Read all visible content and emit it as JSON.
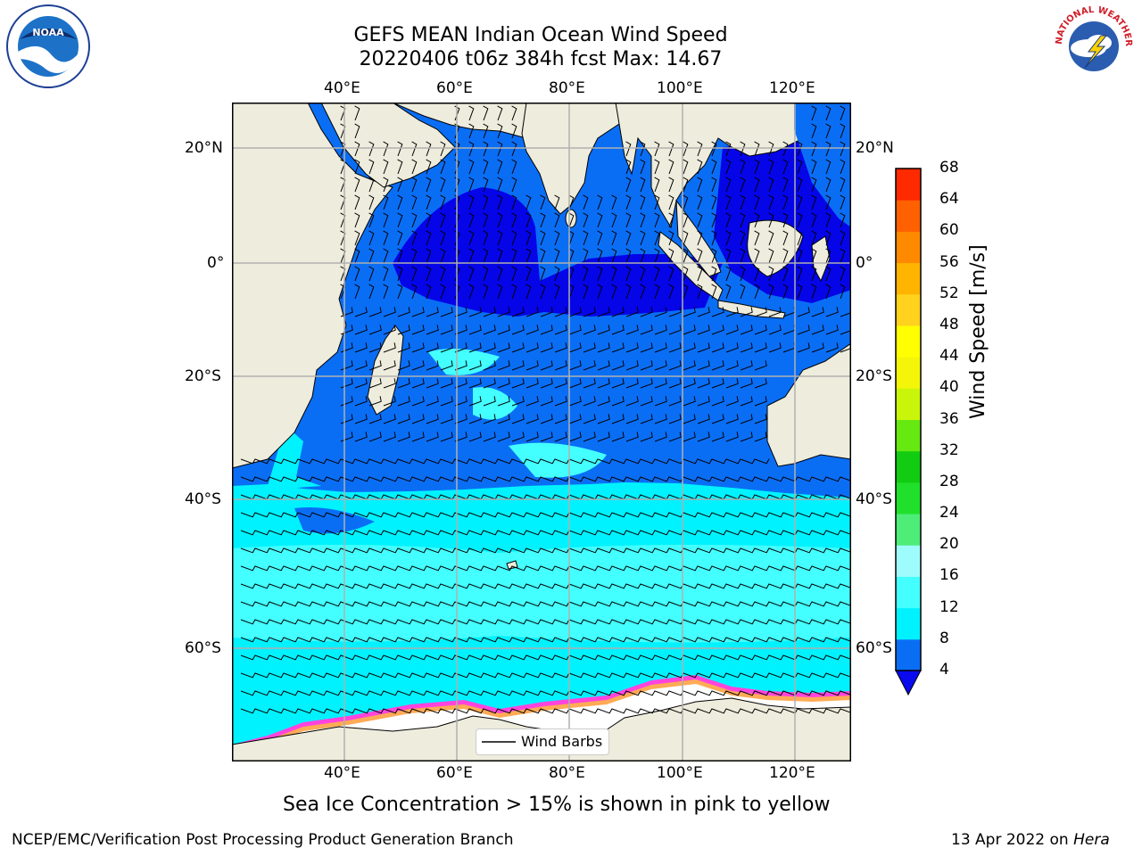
{
  "title": {
    "line1": "GEFS MEAN Indian Ocean Wind Speed",
    "line2": "20220406 t06z 384h fcst   Max: 14.67"
  },
  "map": {
    "lon_labels": [
      "40°E",
      "60°E",
      "80°E",
      "100°E",
      "120°E"
    ],
    "lat_labels": [
      "20°N",
      "0°",
      "20°S",
      "40°S",
      "60°S"
    ],
    "legend_label": "Wind Barbs",
    "colors": {
      "land": "#eeecdc",
      "ice": "#ffffff",
      "ice_edge": [
        "#ff44dd",
        "#ffaa55",
        "#ffe070"
      ],
      "wind_4_8": "#0a6ef5",
      "wind_8_12": "#00f2ff",
      "wind_12_16": "#44ffff",
      "wind_lt_4": "#0505e8"
    }
  },
  "colorbar": {
    "ticks": [
      "68",
      "64",
      "60",
      "56",
      "52",
      "48",
      "44",
      "40",
      "36",
      "32",
      "28",
      "24",
      "20",
      "16",
      "12",
      "8",
      "4"
    ],
    "label": "Wind Speed [m/s]",
    "levels": [
      4,
      8,
      12,
      16,
      20,
      24,
      28,
      32,
      36,
      40,
      44,
      48,
      52,
      56,
      60,
      64,
      68
    ],
    "colors": [
      "#0a6ef5",
      "#00f2ff",
      "#44ffff",
      "#9ffcfc",
      "#4ded78",
      "#21e02b",
      "#11cc11",
      "#66e811",
      "#c8f50a",
      "#f5f50a",
      "#ffff00",
      "#ffd21e",
      "#ffb400",
      "#ff8a00",
      "#ff6000",
      "#ff2a00",
      "#ff0000"
    ],
    "under_color": "#0a0aee"
  },
  "caption": "Sea Ice Concentration > 15% is shown in pink to yellow",
  "footer": {
    "left": "NCEP/EMC/Verification Post Processing Product Generation Branch",
    "right_prefix": "13 Apr 2022 on ",
    "right_host": "Hera"
  },
  "logos": {
    "left": "NOAA",
    "right_text": "NATIONAL WEATHER SERVICE"
  }
}
